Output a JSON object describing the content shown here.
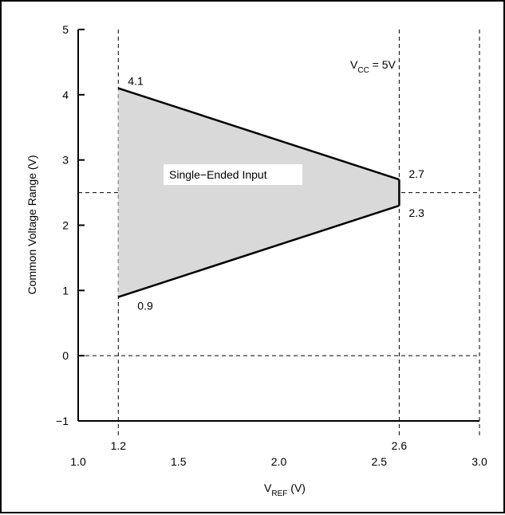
{
  "chart_data": {
    "type": "area",
    "xlabel_main": "V",
    "xlabel_sub": "REF",
    "xlabel_unit": " (V)",
    "ylabel": "Common Voltage Range (V)",
    "xlim": [
      1.0,
      3.0
    ],
    "ylim": [
      -1,
      5
    ],
    "x_ticks": [
      1.0,
      1.5,
      2.0,
      2.5,
      3.0
    ],
    "x_tick_labels": [
      "1.0",
      "1.5",
      "2.0",
      "2.5",
      "3.0"
    ],
    "x_marker_ticks": [
      1.2,
      2.6
    ],
    "x_marker_labels": [
      "1.2",
      "2.6"
    ],
    "y_ticks": [
      -1,
      0,
      1,
      2,
      3,
      4,
      5
    ],
    "y_tick_labels": [
      "−1",
      "0",
      "1",
      "2",
      "3",
      "4",
      "5"
    ],
    "dashed_vertical_lines": [
      1.2,
      2.6,
      3.0
    ],
    "dashed_horizontal_lines": [
      2.5,
      0
    ],
    "region": {
      "name": "Single−Ended Input",
      "upper": [
        {
          "x": 1.2,
          "y": 4.1
        },
        {
          "x": 2.6,
          "y": 2.7
        }
      ],
      "lower": [
        {
          "x": 1.2,
          "y": 0.9
        },
        {
          "x": 2.6,
          "y": 2.3
        }
      ],
      "fill_color": "#d9d9d9"
    },
    "point_labels": [
      {
        "x": 1.2,
        "y": 4.1,
        "text": "4.1"
      },
      {
        "x": 2.6,
        "y": 2.7,
        "text": "2.7"
      },
      {
        "x": 2.6,
        "y": 2.3,
        "text": "2.3"
      },
      {
        "x": 1.2,
        "y": 0.9,
        "text": "0.9"
      }
    ],
    "condition_main": "V",
    "condition_sub": "CC",
    "condition_rest": " = 5V",
    "region_label": "Single−Ended Input"
  }
}
